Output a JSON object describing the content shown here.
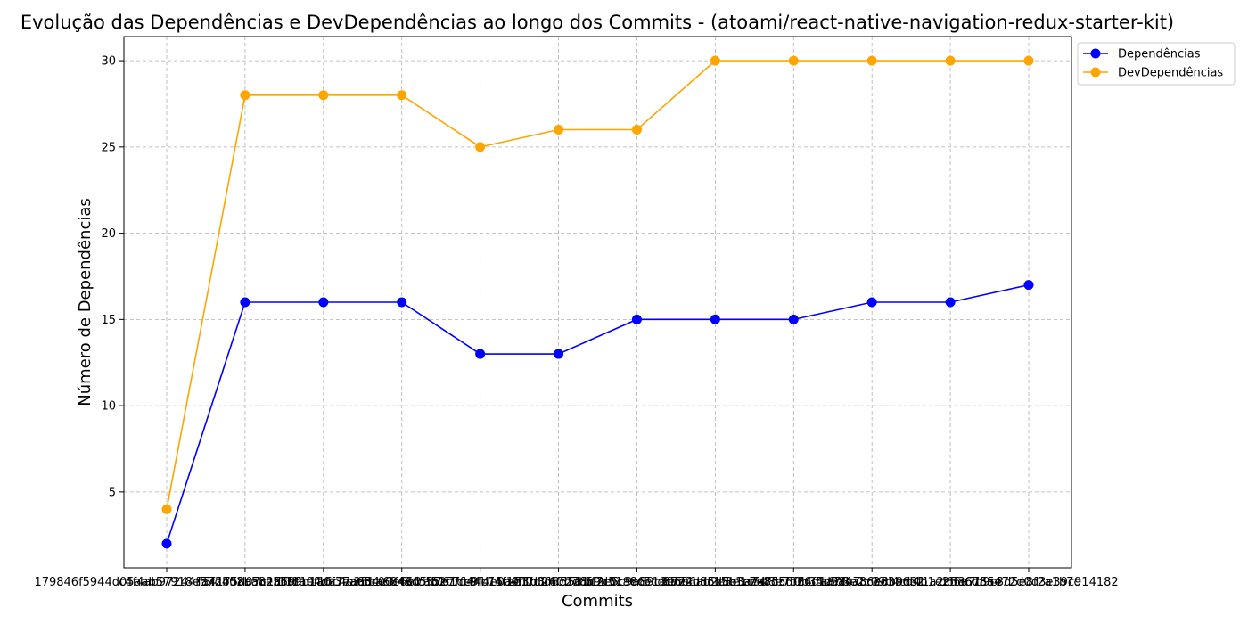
{
  "chart_data": {
    "type": "line",
    "title": "Evolução das Dependências e DevDependências ao longo dos Commits - (atoami/react-native-navigation-redux-starter-kit)",
    "xlabel": "Commits",
    "ylabel": "Número de Dependências",
    "categories": [
      "179846f5944d05aab57918e57d402ba8e56f1",
      "c4f4ab97244ff5f2b58a5b2a59f1e4da77ac5",
      "fa4175d07c1f13ca0f16c4e35ba6843d5ff76",
      "1fb9b1a0f3ea68c00e6e0f55e7fd44c74f1e1",
      "ad4e3f46fca51f1cc9fb15b4f3b0d6c2d8ff7",
      "b2c7fe9f4e0a0f1d3f60b7bb9d51a8c5cdc7e",
      "e5f7d24f55a1c7c0c9e6e1e06f4bd5d8b3a74",
      "5f2e5c9a89c3ecb6ad2e3e1c5d8e7f0b35b9a",
      "8b72d8c15e1eea75c6f26d1a7f4a8c3d3b6e2",
      "c7e8d5fb64f4d58b7c6e8b9d3f1a2c5e6d8a4",
      "a6b8e2c09c4cd4b1e2f6a7b9c3d5e8f2a1b7c",
      "d6f36755e72d0d3e39c914182"
    ],
    "ylim": [
      0.6,
      31.4
    ],
    "yticks": [
      5,
      10,
      15,
      20,
      25,
      30
    ],
    "grid": true,
    "legend_position": "top-right outside",
    "series": [
      {
        "name": "Dependências",
        "color": "#0000ff",
        "values": [
          2,
          16,
          16,
          16,
          13,
          13,
          15,
          15,
          15,
          16,
          16,
          17
        ]
      },
      {
        "name": "DevDependências",
        "color": "#ffa500",
        "values": [
          4,
          28,
          28,
          28,
          25,
          26,
          26,
          30,
          30,
          30,
          30,
          30
        ]
      }
    ]
  }
}
